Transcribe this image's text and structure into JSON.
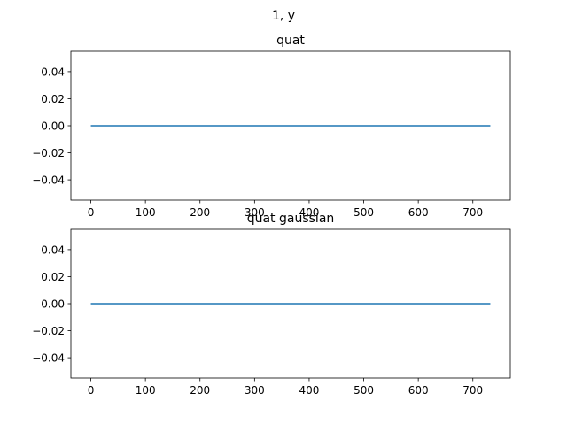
{
  "figure": {
    "suptitle": "1, y"
  },
  "chart_data": [
    {
      "type": "line",
      "title": "quat",
      "xlabel": "",
      "ylabel": "",
      "xlim": [
        -36.6,
        768.6
      ],
      "ylim": [
        -0.055,
        0.055
      ],
      "xticks": [
        0,
        100,
        200,
        300,
        400,
        500,
        600,
        700
      ],
      "xtick_labels": [
        "0",
        "100",
        "200",
        "300",
        "400",
        "500",
        "600",
        "700"
      ],
      "yticks": [
        0.04,
        0.02,
        0.0,
        -0.02,
        -0.04
      ],
      "ytick_labels": [
        "0.04",
        "0.02",
        "0.00",
        "−0.02",
        "−0.04"
      ],
      "grid": false,
      "series": [
        {
          "color": "#1f77b4",
          "x": [
            0,
            732
          ],
          "y": [
            0,
            0
          ]
        }
      ]
    },
    {
      "type": "line",
      "title": "quat gaussian",
      "xlabel": "",
      "ylabel": "",
      "xlim": [
        -36.6,
        768.6
      ],
      "ylim": [
        -0.055,
        0.055
      ],
      "xticks": [
        0,
        100,
        200,
        300,
        400,
        500,
        600,
        700
      ],
      "xtick_labels": [
        "0",
        "100",
        "200",
        "300",
        "400",
        "500",
        "600",
        "700"
      ],
      "yticks": [
        0.04,
        0.02,
        0.0,
        -0.02,
        -0.04
      ],
      "ytick_labels": [
        "0.04",
        "0.02",
        "0.00",
        "−0.02",
        "−0.04"
      ],
      "grid": false,
      "series": [
        {
          "color": "#1f77b4",
          "x": [
            0,
            732
          ],
          "y": [
            0,
            0
          ]
        }
      ]
    }
  ]
}
